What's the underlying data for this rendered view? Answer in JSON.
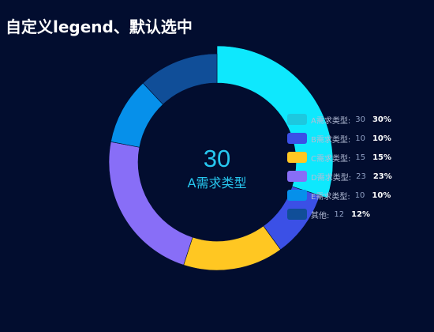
{
  "page": {
    "title": "自定义legend、默认选中",
    "background": "#020d2f"
  },
  "center": {
    "value": "30",
    "label": "A需求类型"
  },
  "chart_data": {
    "type": "pie",
    "style": "donut",
    "title": "自定义legend、默认选中",
    "selected": "A需求类型",
    "legend_position": "right",
    "slices": [
      {
        "name": "A需求类型",
        "value": 30,
        "percent": "30%",
        "color": "#0ee8fd",
        "selected": true
      },
      {
        "name": "B需求类型",
        "value": 10,
        "percent": "10%",
        "color": "#3b50e6"
      },
      {
        "name": "C需求类型",
        "value": 15,
        "percent": "15%",
        "color": "#ffc722"
      },
      {
        "name": "D需求类型",
        "value": 23,
        "percent": "23%",
        "color": "#886ef7"
      },
      {
        "name": "E需求类型",
        "value": 10,
        "percent": "10%",
        "color": "#0690ea"
      },
      {
        "name": "其他",
        "value": 12,
        "percent": "12%",
        "color": "#104e98"
      }
    ]
  },
  "legend": {
    "items": [
      {
        "label": "A需求类型:",
        "value": "30",
        "percent": "30%",
        "color": "#1dc8df"
      },
      {
        "label": "B需求类型:",
        "value": "10",
        "percent": "10%",
        "color": "#3b50e6"
      },
      {
        "label": "C需求类型:",
        "value": "15",
        "percent": "15%",
        "color": "#ffc722"
      },
      {
        "label": "D需求类型:",
        "value": "23",
        "percent": "23%",
        "color": "#886ef7"
      },
      {
        "label": "E需求类型:",
        "value": "10",
        "percent": "10%",
        "color": "#0690ea"
      },
      {
        "label": "其他:",
        "value": "12",
        "percent": "12%",
        "color": "#104e98"
      }
    ]
  }
}
